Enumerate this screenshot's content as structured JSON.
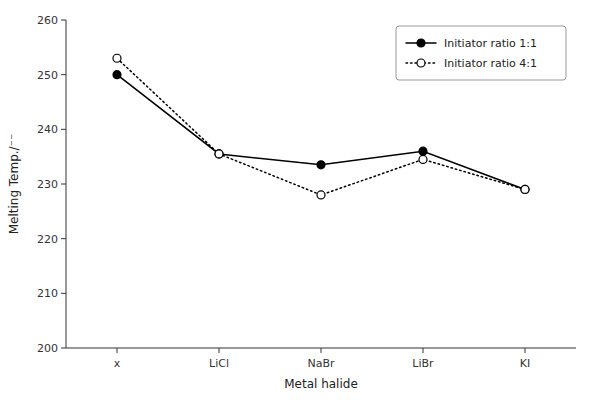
{
  "chart_data": {
    "type": "line",
    "xlabel": "Metal halide",
    "ylabel": "Melting Temp./⁻⁻",
    "categories": [
      "x",
      "LiCl",
      "NaBr",
      "LiBr",
      "KI"
    ],
    "series": [
      {
        "name": "Initiator ratio 1:1",
        "color": "#000000",
        "line_style": "solid",
        "marker": "filled-circle",
        "values": [
          250,
          235.5,
          233.5,
          236,
          229
        ]
      },
      {
        "name": "Initiator ratio 4:1",
        "color": "#000000",
        "line_style": "dotted",
        "marker": "open-circle",
        "values": [
          253,
          235.5,
          228,
          234.5,
          229
        ]
      }
    ],
    "ylim": [
      200,
      260
    ],
    "yticks": [
      200,
      210,
      220,
      230,
      240,
      250,
      260
    ],
    "grid": false,
    "legend": "upper right"
  }
}
